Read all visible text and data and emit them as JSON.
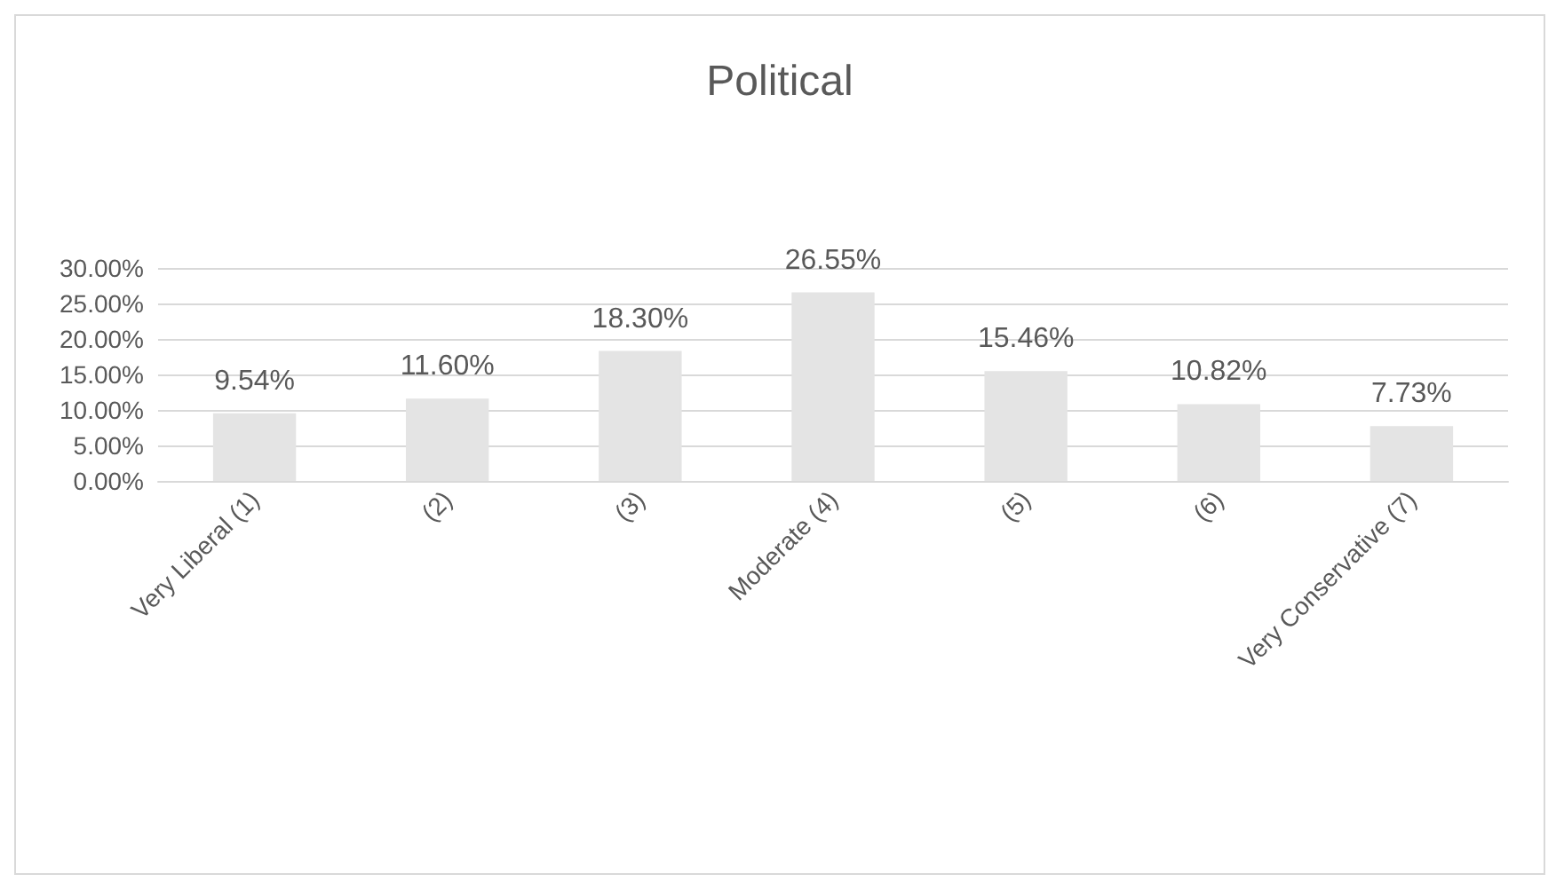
{
  "chart_data": {
    "type": "bar",
    "title": "Political",
    "categories": [
      "Very Liberal (1)",
      "(2)",
      "(3)",
      "Moderate (4)",
      "(5)",
      "(6)",
      "Very Conservative (7)"
    ],
    "values": [
      9.54,
      11.6,
      18.3,
      26.55,
      15.46,
      10.82,
      7.73
    ],
    "value_labels": [
      "9.54%",
      "11.60%",
      "18.30%",
      "26.55%",
      "15.46%",
      "10.82%",
      "7.73%"
    ],
    "color": "#e4e4e4",
    "ylim": [
      0,
      30
    ],
    "yticks": [
      {
        "value": 0,
        "label": "0.00%"
      },
      {
        "value": 5,
        "label": "5.00%"
      },
      {
        "value": 10,
        "label": "10.00%"
      },
      {
        "value": 15,
        "label": "15.00%"
      },
      {
        "value": 20,
        "label": "20.00%"
      },
      {
        "value": 25,
        "label": "25.00%"
      },
      {
        "value": 30,
        "label": "30.00%"
      }
    ],
    "grid": "y"
  }
}
